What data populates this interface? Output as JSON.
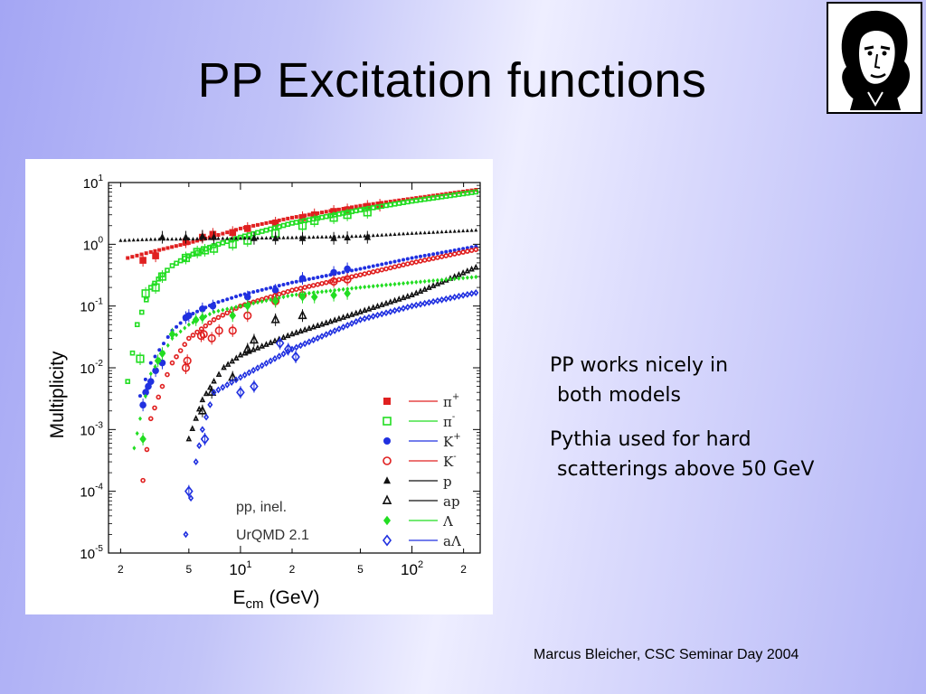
{
  "slide": {
    "title": "PP Excitation functions",
    "footer": "Marcus Bleicher, CSC Seminar Day 2004"
  },
  "notes": [
    {
      "line1": "PP works nicely in",
      "line2": "both models"
    },
    {
      "line1": "Pythia used for hard",
      "line2": "scatterings above 50 GeV"
    }
  ],
  "chart_data": {
    "type": "scatter",
    "title": "",
    "xlabel": "E",
    "xlabel_sub": "cm",
    "xlabel_unit": "(GeV)",
    "ylabel": "Multiplicity",
    "xscale": "log",
    "yscale": "log",
    "xlim": [
      1.7,
      250
    ],
    "ylim": [
      1e-05,
      10
    ],
    "x_ticks": [
      {
        "value": 2,
        "label": "2"
      },
      {
        "value": 5,
        "label": "5"
      },
      {
        "value": 10,
        "label": "10",
        "sup": "1"
      },
      {
        "value": 20,
        "label": "2"
      },
      {
        "value": 50,
        "label": "5"
      },
      {
        "value": 100,
        "label": "10",
        "sup": "2"
      },
      {
        "value": 200,
        "label": "2"
      }
    ],
    "y_ticks": [
      {
        "value": 10,
        "base": "10",
        "sup": "1"
      },
      {
        "value": 1,
        "base": "10",
        "sup": "0"
      },
      {
        "value": 0.1,
        "base": "10",
        "sup": "-1"
      },
      {
        "value": 0.01,
        "base": "10",
        "sup": "-2"
      },
      {
        "value": 0.001,
        "base": "10",
        "sup": "-3"
      },
      {
        "value": 0.0001,
        "base": "10",
        "sup": "-4"
      },
      {
        "value": 1e-05,
        "base": "10",
        "sup": "-5"
      }
    ],
    "annotations": [
      "pp, inel.",
      "UrQMD 2.1"
    ],
    "legend_placement": "bottom-right",
    "series": [
      {
        "name": "π",
        "sup": "+",
        "color": "#e02020",
        "marker": "square",
        "model_x": [
          2.2,
          3,
          5,
          7,
          10,
          20,
          50,
          100,
          250
        ],
        "model_y": [
          0.6,
          0.75,
          1.05,
          1.35,
          1.8,
          2.7,
          4.2,
          5.5,
          7.8
        ],
        "data_x": [
          2.7,
          3.2,
          4.8,
          6.0,
          6.9,
          9.0,
          11,
          16,
          23,
          27,
          35,
          42,
          55,
          65
        ],
        "data_y": [
          0.55,
          0.65,
          1.1,
          1.3,
          1.45,
          1.55,
          1.8,
          2.2,
          2.7,
          3.0,
          3.4,
          3.6,
          4.1,
          4.3
        ]
      },
      {
        "name": "π",
        "sup": "-",
        "color": "#22dd22",
        "marker": "open-square",
        "model_x": [
          2.2,
          2.5,
          3,
          3.5,
          4,
          5,
          7,
          10,
          20,
          50,
          100,
          250
        ],
        "model_y": [
          0.006,
          0.05,
          0.2,
          0.32,
          0.45,
          0.65,
          0.95,
          1.3,
          2.2,
          3.6,
          5,
          7.2
        ],
        "data_x": [
          2.6,
          2.8,
          3.2,
          3.5,
          4.8,
          5.6,
          6.2,
          7.0,
          9.0,
          11,
          16,
          23,
          27,
          35,
          42,
          55
        ],
        "data_y": [
          0.014,
          0.16,
          0.2,
          0.3,
          0.6,
          0.75,
          0.8,
          0.85,
          1.0,
          1.15,
          1.5,
          2.0,
          2.4,
          2.7,
          3.0,
          3.3
        ]
      },
      {
        "name": "K",
        "sup": "+",
        "color": "#2030e0",
        "marker": "circle",
        "model_x": [
          2.6,
          3,
          4,
          5,
          7,
          10,
          20,
          50,
          100,
          250
        ],
        "model_y": [
          0.0035,
          0.012,
          0.04,
          0.07,
          0.11,
          0.15,
          0.24,
          0.4,
          0.6,
          0.95
        ],
        "data_x": [
          2.7,
          2.8,
          2.9,
          3.0,
          3.2,
          3.5,
          4.8,
          5.0,
          6.0,
          6.9,
          11,
          16,
          23,
          35,
          42
        ],
        "data_y": [
          0.0025,
          0.004,
          0.005,
          0.006,
          0.009,
          0.012,
          0.065,
          0.07,
          0.09,
          0.1,
          0.14,
          0.18,
          0.28,
          0.35,
          0.4
        ]
      },
      {
        "name": "K",
        "sup": "-",
        "color": "#e02020",
        "marker": "open-circle",
        "model_x": [
          2.7,
          3.0,
          3.5,
          4,
          5,
          7,
          10,
          20,
          50,
          100,
          250
        ],
        "model_y": [
          0.00015,
          0.0015,
          0.005,
          0.012,
          0.03,
          0.06,
          0.1,
          0.18,
          0.32,
          0.5,
          0.85
        ],
        "data_x": [
          4.8,
          4.9,
          5.9,
          6.1,
          6.8,
          7.5,
          9,
          11,
          16,
          23,
          35,
          42
        ],
        "data_y": [
          0.01,
          0.013,
          0.033,
          0.035,
          0.03,
          0.04,
          0.04,
          0.07,
          0.12,
          0.15,
          0.25,
          0.27
        ]
      },
      {
        "name": "p",
        "sup": "",
        "color": "#111111",
        "marker": "triangle",
        "model_x": [
          2.0,
          3,
          5,
          7,
          10,
          20,
          50,
          100,
          250
        ],
        "model_y": [
          1.15,
          1.2,
          1.22,
          1.24,
          1.25,
          1.28,
          1.35,
          1.5,
          1.7
        ],
        "data_x": [
          3.5,
          4.8,
          6,
          7,
          12,
          16,
          23,
          35,
          42,
          55
        ],
        "data_y": [
          1.3,
          1.3,
          1.35,
          1.3,
          1.25,
          1.25,
          1.25,
          1.25,
          1.28,
          1.3
        ]
      },
      {
        "name": "ap",
        "sup": "",
        "color": "#111111",
        "marker": "open-triangle",
        "model_x": [
          5,
          5.5,
          6,
          7,
          8,
          10,
          20,
          50,
          100,
          250
        ],
        "model_y": [
          0.0007,
          0.0015,
          0.003,
          0.006,
          0.01,
          0.016,
          0.035,
          0.08,
          0.15,
          0.45
        ],
        "data_x": [
          6.0,
          6.8,
          9,
          11,
          12,
          16,
          23
        ],
        "data_y": [
          0.002,
          0.004,
          0.007,
          0.02,
          0.028,
          0.06,
          0.07
        ]
      },
      {
        "name": "Λ",
        "sup": "",
        "color": "#22dd22",
        "marker": "diamond",
        "model_x": [
          2.4,
          2.6,
          3,
          4,
          5,
          7,
          10,
          20,
          50,
          100,
          250
        ],
        "model_y": [
          0.0005,
          0.0015,
          0.008,
          0.03,
          0.05,
          0.08,
          0.1,
          0.15,
          0.2,
          0.24,
          0.3
        ],
        "data_x": [
          2.7,
          3.3,
          3.5,
          4.0,
          5.5,
          6.0,
          9,
          11,
          16,
          23,
          27,
          35,
          42
        ],
        "data_y": [
          0.0007,
          0.013,
          0.017,
          0.035,
          0.06,
          0.065,
          0.07,
          0.1,
          0.12,
          0.14,
          0.14,
          0.15,
          0.16
        ]
      },
      {
        "name": "aΛ",
        "sup": "",
        "color": "#2030e0",
        "marker": "open-diamond",
        "model_x": [
          4.8,
          5.5,
          6,
          7,
          10,
          20,
          50,
          100,
          250
        ],
        "model_y": [
          2e-05,
          0.0003,
          0.001,
          0.004,
          0.007,
          0.02,
          0.06,
          0.1,
          0.17
        ],
        "data_x": [
          5.0,
          6.2,
          10,
          12,
          17,
          19,
          21
        ],
        "data_y": [
          0.0001,
          0.0007,
          0.004,
          0.005,
          0.025,
          0.02,
          0.015
        ]
      }
    ]
  }
}
